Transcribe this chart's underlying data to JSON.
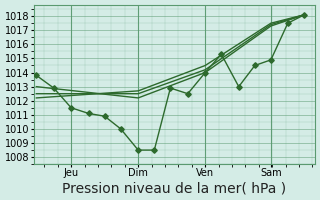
{
  "background_color": "#d4ece6",
  "grid_color": "#5a9a70",
  "line_color": "#2d6a2d",
  "xlabel": "Pression niveau de la mer( hPa )",
  "ylim": [
    1007.5,
    1018.8
  ],
  "yticks": [
    1008,
    1009,
    1010,
    1011,
    1012,
    1013,
    1014,
    1015,
    1016,
    1017,
    1018
  ],
  "xtick_labels": [
    "Jeu",
    "Dim",
    "Ven",
    "Sam"
  ],
  "xtick_positions": [
    0.13,
    0.38,
    0.63,
    0.875
  ],
  "series": [
    {
      "x": [
        0.0,
        0.065,
        0.13,
        0.195,
        0.255,
        0.315,
        0.38,
        0.44,
        0.5,
        0.565,
        0.63,
        0.69,
        0.755,
        0.815,
        0.875,
        0.938,
        1.0
      ],
      "y": [
        1013.8,
        1012.9,
        1011.5,
        1011.1,
        1010.9,
        1010.0,
        1008.5,
        1008.5,
        1012.9,
        1012.5,
        1014.0,
        1015.3,
        1013.0,
        1014.5,
        1014.9,
        1017.5,
        1018.1
      ],
      "with_markers": true
    },
    {
      "x": [
        0.0,
        0.38,
        0.63,
        0.875,
        1.0
      ],
      "y": [
        1013.0,
        1012.2,
        1014.0,
        1017.3,
        1018.1
      ],
      "with_markers": false
    },
    {
      "x": [
        0.0,
        0.38,
        0.63,
        0.875,
        1.0
      ],
      "y": [
        1012.5,
        1012.5,
        1014.2,
        1017.4,
        1018.1
      ],
      "with_markers": false
    },
    {
      "x": [
        0.0,
        0.38,
        0.63,
        0.875,
        1.0
      ],
      "y": [
        1012.2,
        1012.7,
        1014.5,
        1017.5,
        1018.1
      ],
      "with_markers": false
    }
  ],
  "vline_x": [
    0.13,
    0.38,
    0.63,
    0.875
  ],
  "xlabel_fontsize": 10,
  "tick_fontsize": 7,
  "linewidth": 1.0,
  "markersize": 2.8,
  "marker": "D"
}
